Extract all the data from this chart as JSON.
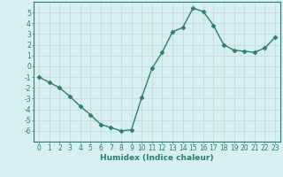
{
  "x": [
    0,
    1,
    2,
    3,
    4,
    5,
    6,
    7,
    8,
    9,
    10,
    11,
    12,
    13,
    14,
    15,
    16,
    17,
    18,
    19,
    20,
    21,
    22,
    23
  ],
  "y": [
    -1.0,
    -1.5,
    -2.0,
    -2.8,
    -3.7,
    -4.5,
    -5.4,
    -5.7,
    -6.0,
    -5.9,
    -2.9,
    -0.2,
    1.3,
    3.2,
    3.6,
    5.4,
    5.1,
    3.8,
    2.0,
    1.5,
    1.4,
    1.3,
    1.7,
    2.7
  ],
  "line_color": "#2e7d6e",
  "marker": "D",
  "marker_size": 2.5,
  "bg_color": "#d6f0ef",
  "grid_color": "#c8dedd",
  "axis_color": "#2e7d6e",
  "xlabel": "Humidex (Indice chaleur)",
  "ylim": [
    -7,
    6
  ],
  "xlim": [
    -0.5,
    23.5
  ],
  "yticks": [
    -6,
    -5,
    -4,
    -3,
    -2,
    -1,
    0,
    1,
    2,
    3,
    4,
    5
  ],
  "xticks": [
    0,
    1,
    2,
    3,
    4,
    5,
    6,
    7,
    8,
    9,
    10,
    11,
    12,
    13,
    14,
    15,
    16,
    17,
    18,
    19,
    20,
    21,
    22,
    23
  ],
  "label_fontsize": 6.5,
  "tick_fontsize": 5.5,
  "linewidth": 1.0
}
